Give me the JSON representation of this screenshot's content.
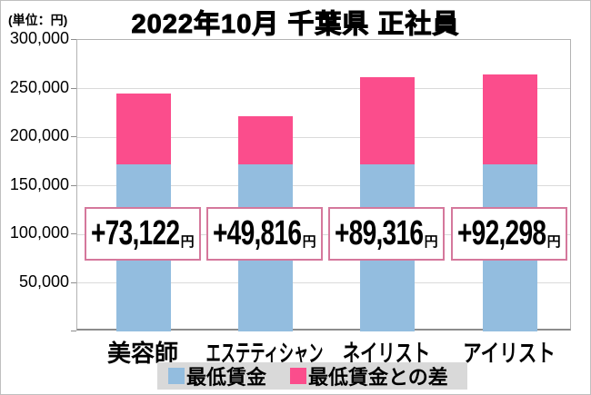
{
  "title": "2022年10月 千葉県 正社員",
  "unit_label": "(単位：円)",
  "chart_data": {
    "type": "bar",
    "stacked": true,
    "title": "2022年10月 千葉県 正社員",
    "ylabel": "(単位：円)",
    "categories": [
      "美容師",
      "エステティシャン",
      "ネイリスト",
      "アイリスト"
    ],
    "series": [
      {
        "name": "最低賃金",
        "values": [
          172000,
          172000,
          172000,
          172000
        ],
        "color": "#93bddf"
      },
      {
        "name": "最低賃金との差",
        "values": [
          73122,
          49816,
          89316,
          92298
        ],
        "color": "#fb4d8c"
      }
    ],
    "bar_labels": [
      "+73,122",
      "+49,816",
      "+89,316",
      "+92,298"
    ],
    "bar_label_suffix": "円",
    "ylim": [
      0,
      300000
    ],
    "ytick_step": 50000,
    "ytick_labels": [
      "300,000",
      "250,000",
      "200,000",
      "150,000",
      "100,000",
      "50,000"
    ],
    "grid": true,
    "legend_position": "bottom"
  },
  "legend": {
    "items": [
      {
        "label": "最低賃金",
        "color": "#93bddf"
      },
      {
        "label": "最低賃金との差",
        "color": "#fb4d8c"
      }
    ]
  },
  "colors": {
    "base_bar": "#93bddf",
    "diff_bar": "#fb4d8c",
    "box_border": "#d5789c",
    "gridline": "#dadada",
    "legend_bg": "#d9d9d9",
    "page_border": "#bfbfbf"
  }
}
